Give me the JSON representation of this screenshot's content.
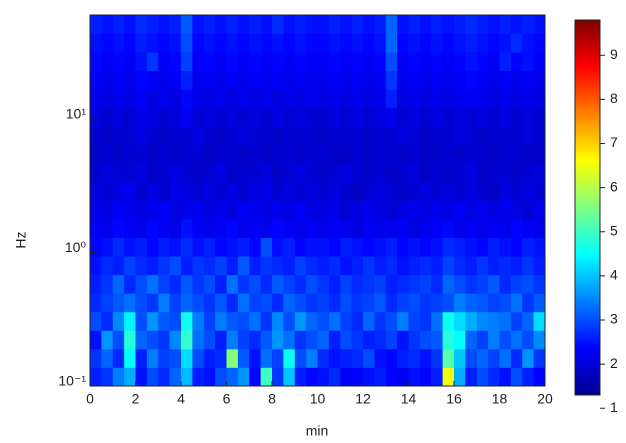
{
  "chart_data": {
    "type": "heatmap",
    "colormap": "jet",
    "xlabel": "min",
    "ylabel": "Hz",
    "xlim": [
      0,
      20
    ],
    "xticks": [
      0,
      2,
      4,
      6,
      8,
      10,
      12,
      14,
      16,
      18,
      20
    ],
    "ylim": [
      0.1,
      60
    ],
    "log_y": true,
    "yticks": [
      {
        "value": 0.1,
        "label": "10⁻¹"
      },
      {
        "value": 1,
        "label": "10⁰"
      },
      {
        "value": 10,
        "label": "10¹"
      }
    ],
    "clim": [
      1.3,
      9.8
    ],
    "cticks": [
      1,
      2,
      3,
      4,
      5,
      6,
      7,
      8,
      9
    ],
    "z": [
      [
        2.6,
        2.8,
        3.4,
        3.8,
        2.5,
        3.0,
        2.7,
        3.2,
        3.9,
        2.6,
        2.5,
        3.0,
        3.2,
        3.6,
        2.4,
        5.0,
        2.8,
        4.0,
        2.6,
        2.4,
        2.5,
        2.7,
        2.3,
        2.4,
        2.5,
        2.6,
        2.4,
        2.3,
        2.5,
        2.4,
        2.6,
        6.5,
        3.8,
        2.6,
        3.0,
        2.7,
        2.5,
        3.0,
        2.6,
        2.4
      ],
      [
        2.8,
        3.2,
        2.7,
        4.5,
        2.6,
        3.4,
        2.9,
        3.0,
        4.2,
        3.0,
        2.6,
        2.7,
        5.6,
        3.1,
        2.5,
        3.3,
        2.9,
        4.6,
        3.0,
        3.4,
        2.7,
        2.5,
        2.6,
        2.7,
        3.0,
        2.5,
        2.4,
        2.6,
        2.7,
        2.5,
        2.8,
        5.2,
        4.0,
        3.0,
        3.2,
        2.9,
        3.3,
        2.7,
        3.6,
        2.8
      ],
      [
        2.5,
        3.6,
        3.0,
        4.8,
        3.2,
        3.0,
        2.8,
        3.5,
        4.9,
        3.3,
        3.0,
        2.6,
        3.4,
        2.9,
        2.7,
        3.1,
        3.6,
        3.3,
        2.8,
        3.0,
        3.2,
        2.6,
        3.0,
        2.8,
        2.6,
        2.7,
        2.9,
        2.5,
        2.8,
        3.0,
        3.1,
        4.8,
        4.5,
        3.2,
        2.9,
        3.4,
        3.0,
        3.3,
        3.0,
        3.5
      ],
      [
        3.0,
        2.7,
        3.5,
        4.4,
        3.0,
        3.6,
        3.1,
        3.0,
        4.6,
        3.4,
        2.9,
        3.4,
        3.1,
        3.0,
        3.3,
        2.8,
        3.5,
        3.0,
        3.6,
        3.2,
        3.0,
        3.3,
        2.9,
        2.7,
        3.2,
        2.8,
        3.0,
        3.4,
        2.9,
        2.8,
        3.3,
        4.6,
        4.2,
        3.8,
        3.5,
        3.4,
        3.3,
        2.9,
        3.2,
        4.2
      ],
      [
        2.7,
        2.9,
        3.1,
        3.3,
        3.0,
        2.8,
        3.4,
        2.9,
        3.2,
        3.0,
        2.8,
        3.1,
        2.7,
        3.3,
        2.9,
        3.0,
        2.7,
        3.2,
        3.0,
        2.8,
        2.9,
        2.7,
        3.0,
        2.8,
        2.9,
        3.1,
        2.7,
        2.9,
        3.0,
        2.8,
        2.9,
        3.0,
        3.4,
        3.2,
        3.1,
        2.9,
        3.0,
        3.3,
        2.8,
        3.1
      ],
      [
        2.6,
        2.8,
        3.2,
        2.7,
        3.0,
        3.3,
        2.9,
        2.7,
        3.1,
        2.8,
        3.0,
        2.6,
        3.3,
        2.8,
        3.0,
        2.7,
        3.1,
        2.9,
        2.7,
        3.0,
        2.8,
        2.6,
        2.9,
        2.7,
        2.8,
        2.9,
        2.6,
        2.7,
        2.8,
        2.9,
        2.7,
        3.2,
        3.0,
        2.8,
        2.9,
        3.1,
        2.7,
        2.9,
        3.0,
        2.8
      ],
      [
        2.5,
        2.7,
        2.6,
        2.9,
        2.7,
        2.6,
        2.8,
        3.0,
        2.6,
        2.8,
        2.7,
        2.9,
        2.6,
        3.1,
        2.6,
        2.8,
        2.7,
        2.6,
        2.9,
        2.7,
        2.6,
        2.7,
        2.5,
        2.6,
        2.8,
        2.6,
        2.7,
        2.5,
        2.6,
        2.7,
        2.6,
        2.9,
        2.7,
        2.6,
        2.8,
        2.6,
        2.7,
        2.6,
        2.8,
        2.6
      ],
      [
        2.4,
        2.5,
        2.7,
        2.5,
        2.6,
        2.4,
        2.6,
        2.5,
        2.7,
        2.5,
        2.6,
        2.4,
        2.5,
        2.6,
        2.4,
        3.0,
        2.5,
        2.6,
        2.4,
        2.5,
        2.5,
        2.4,
        2.6,
        2.5,
        2.4,
        2.5,
        2.6,
        2.4,
        2.5,
        2.4,
        2.5,
        2.7,
        2.6,
        2.5,
        2.4,
        2.6,
        2.5,
        2.4,
        2.6,
        2.5
      ],
      [
        2.3,
        2.2,
        2.4,
        2.3,
        2.2,
        2.4,
        2.3,
        2.2,
        2.5,
        2.3,
        2.2,
        2.3,
        2.4,
        2.2,
        2.3,
        2.2,
        2.4,
        2.3,
        2.2,
        2.3,
        2.2,
        2.3,
        2.2,
        2.1,
        2.3,
        2.2,
        2.2,
        2.3,
        2.1,
        2.2,
        2.3,
        2.4,
        2.2,
        2.3,
        2.2,
        2.3,
        2.2,
        2.4,
        2.3,
        2.2
      ],
      [
        2.2,
        2.1,
        2.3,
        2.2,
        2.1,
        2.2,
        2.3,
        2.1,
        2.2,
        2.2,
        2.1,
        2.2,
        2.1,
        2.3,
        2.2,
        2.1,
        2.2,
        2.1,
        2.3,
        2.1,
        2.1,
        2.2,
        2.0,
        2.1,
        2.2,
        2.1,
        2.0,
        2.1,
        2.2,
        2.1,
        2.2,
        2.1,
        2.3,
        2.1,
        2.2,
        2.1,
        2.2,
        2.1,
        2.0,
        2.2
      ],
      [
        2.1,
        2.0,
        2.1,
        2.2,
        2.0,
        2.1,
        2.0,
        2.2,
        2.1,
        2.0,
        2.1,
        2.0,
        2.1,
        2.0,
        2.1,
        2.2,
        2.0,
        2.1,
        2.0,
        2.1,
        2.0,
        2.1,
        2.0,
        1.9,
        2.0,
        2.1,
        2.0,
        1.9,
        2.0,
        2.1,
        2.0,
        2.1,
        2.0,
        2.1,
        2.0,
        1.9,
        2.1,
        2.0,
        2.1,
        2.0
      ],
      [
        2.0,
        2.1,
        2.0,
        2.0,
        2.1,
        1.9,
        2.0,
        2.1,
        2.0,
        1.9,
        2.0,
        2.1,
        1.9,
        2.0,
        2.0,
        2.1,
        1.9,
        2.0,
        2.1,
        2.0,
        1.9,
        2.0,
        2.1,
        2.0,
        1.9,
        2.0,
        1.9,
        2.0,
        2.1,
        1.9,
        2.0,
        1.9,
        2.0,
        2.1,
        1.9,
        2.0,
        2.0,
        1.9,
        2.0,
        2.1
      ],
      [
        1.9,
        2.0,
        1.9,
        2.0,
        2.0,
        1.9,
        2.0,
        1.9,
        2.0,
        2.0,
        1.9,
        2.0,
        2.0,
        1.9,
        2.0,
        1.9,
        2.0,
        2.0,
        1.9,
        2.0,
        2.0,
        1.9,
        1.9,
        2.0,
        1.9,
        2.0,
        2.0,
        1.9,
        2.0,
        1.9,
        1.9,
        2.0,
        1.9,
        2.0,
        2.0,
        1.9,
        2.0,
        2.0,
        1.9,
        2.0
      ],
      [
        2.0,
        1.9,
        2.0,
        2.0,
        2.1,
        2.0,
        1.9,
        2.0,
        2.0,
        2.1,
        2.0,
        1.9,
        2.0,
        2.1,
        2.0,
        2.0,
        1.9,
        2.0,
        2.0,
        2.0,
        1.9,
        2.0,
        2.0,
        2.0,
        1.9,
        2.0,
        2.0,
        2.1,
        2.0,
        1.9,
        2.0,
        2.0,
        2.1,
        2.0,
        1.9,
        2.0,
        2.0,
        2.0,
        2.1,
        2.0
      ],
      [
        2.1,
        2.0,
        2.1,
        2.0,
        2.2,
        2.1,
        2.0,
        2.1,
        2.3,
        2.0,
        2.1,
        2.0,
        2.1,
        2.0,
        2.1,
        2.0,
        2.1,
        2.0,
        2.1,
        2.0,
        2.0,
        2.1,
        2.0,
        2.1,
        2.0,
        2.1,
        2.2,
        2.0,
        2.1,
        2.0,
        2.1,
        2.0,
        2.1,
        2.0,
        2.1,
        2.0,
        2.1,
        2.0,
        2.1,
        2.0
      ],
      [
        2.2,
        2.1,
        2.2,
        2.1,
        2.3,
        2.1,
        2.2,
        2.1,
        2.4,
        2.2,
        2.1,
        2.2,
        2.1,
        2.2,
        2.1,
        2.2,
        2.1,
        2.2,
        2.1,
        2.2,
        2.1,
        2.2,
        2.1,
        2.2,
        2.1,
        2.2,
        2.6,
        2.1,
        2.2,
        2.1,
        2.2,
        2.1,
        2.2,
        2.3,
        2.2,
        2.1,
        2.2,
        2.1,
        2.2,
        2.1
      ],
      [
        2.3,
        2.2,
        2.3,
        2.2,
        2.4,
        2.3,
        2.2,
        2.3,
        2.6,
        2.2,
        2.3,
        2.2,
        2.3,
        2.2,
        2.3,
        2.2,
        2.3,
        2.2,
        2.3,
        2.2,
        2.2,
        2.3,
        2.2,
        2.3,
        2.2,
        2.3,
        2.8,
        2.2,
        2.3,
        2.2,
        2.3,
        2.2,
        2.3,
        2.4,
        2.3,
        2.2,
        2.3,
        2.2,
        2.3,
        2.2
      ],
      [
        2.4,
        2.3,
        2.4,
        2.3,
        2.5,
        2.8,
        2.3,
        2.4,
        2.9,
        2.3,
        2.4,
        2.3,
        2.4,
        2.3,
        2.4,
        2.3,
        2.4,
        2.3,
        2.4,
        2.3,
        2.3,
        2.4,
        2.3,
        2.4,
        2.3,
        2.4,
        3.0,
        2.3,
        2.4,
        2.3,
        2.4,
        2.3,
        2.4,
        2.5,
        2.4,
        2.3,
        2.6,
        2.4,
        2.5,
        2.3
      ],
      [
        2.5,
        2.4,
        2.5,
        2.4,
        2.6,
        2.5,
        2.4,
        2.5,
        3.0,
        2.4,
        2.5,
        2.4,
        2.5,
        2.4,
        2.5,
        2.4,
        2.5,
        2.4,
        2.5,
        2.4,
        2.4,
        2.5,
        2.4,
        2.5,
        2.4,
        2.5,
        3.2,
        2.4,
        2.5,
        2.4,
        2.5,
        2.4,
        2.5,
        2.6,
        2.5,
        2.4,
        2.5,
        2.7,
        2.5,
        2.4
      ],
      [
        2.6,
        2.5,
        2.6,
        2.5,
        2.7,
        2.6,
        2.5,
        2.6,
        3.1,
        2.5,
        2.6,
        2.5,
        2.6,
        2.5,
        2.6,
        2.5,
        2.7,
        2.5,
        2.6,
        2.5,
        2.5,
        2.6,
        2.5,
        2.6,
        2.5,
        2.6,
        3.2,
        2.5,
        2.6,
        2.5,
        2.6,
        2.5,
        2.6,
        2.7,
        2.6,
        2.5,
        2.6,
        2.5,
        2.6,
        2.5
      ]
    ]
  }
}
